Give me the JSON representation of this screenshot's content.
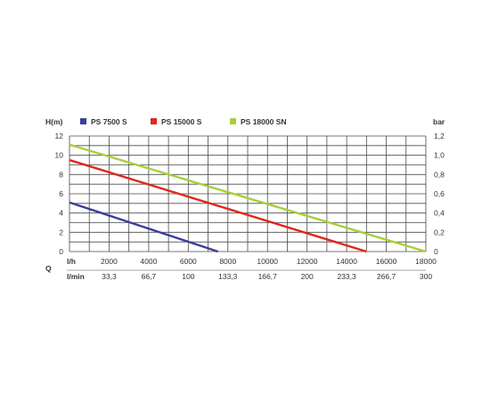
{
  "chart_data": {
    "type": "line",
    "left_axis_label": "H(m)",
    "right_axis_label": "bar",
    "x_prefix_label": "Q",
    "x_row1_unit": "l/h",
    "x_row2_unit": "l/min",
    "x_ticks_lh": [
      "2000",
      "4000",
      "6000",
      "8000",
      "10000",
      "12000",
      "14000",
      "16000",
      "18000"
    ],
    "x_ticks_lmin": [
      "33,3",
      "66,7",
      "100",
      "133,3",
      "166,7",
      "200",
      "233,3",
      "266,7",
      "300"
    ],
    "y_ticks_left": [
      "0",
      "2",
      "4",
      "6",
      "8",
      "10",
      "12"
    ],
    "y_ticks_right": [
      "0",
      "0,2",
      "0,4",
      "0,6",
      "0,8",
      "1,0",
      "1,2"
    ],
    "xlim": [
      0,
      18000
    ],
    "ylim": [
      0,
      12
    ],
    "grid": true,
    "legend_position": "top",
    "series": [
      {
        "name": "PS 7500 S",
        "color": "#3a3f9c",
        "x": [
          0,
          7500
        ],
        "y": [
          5.1,
          0
        ]
      },
      {
        "name": "PS 15000 S",
        "color": "#e1261c",
        "x": [
          0,
          15000
        ],
        "y": [
          9.5,
          0
        ]
      },
      {
        "name": "PS 18000 SN",
        "color": "#a8cf38",
        "x": [
          0,
          18000
        ],
        "y": [
          11.1,
          0
        ]
      }
    ]
  }
}
